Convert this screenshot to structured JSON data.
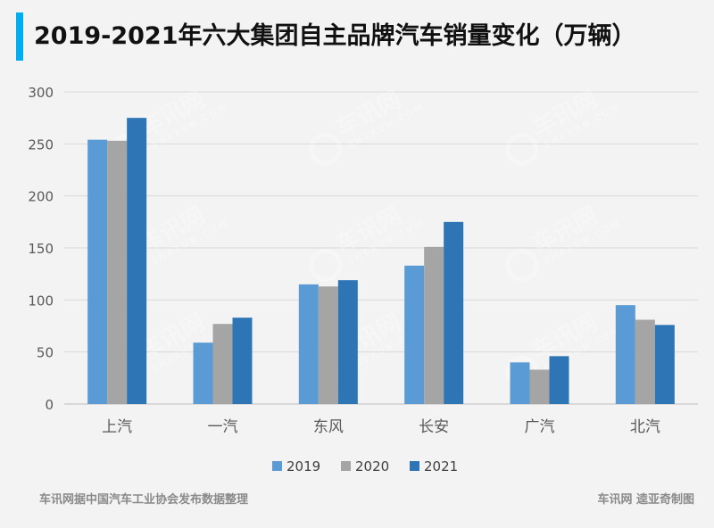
{
  "title": "2019-2021年六大集团自主品牌汽车销量变化（万辆）",
  "source_note": "车讯网据中国汽车工业协会发布数据整理",
  "credit": "车讯网 逵亚奇制图",
  "watermark": {
    "text": "车讯网",
    "subtext": "SHEXUN.COM"
  },
  "colors": {
    "2019": "#5b9bd5",
    "2020": "#a5a5a5",
    "2021": "#2e75b6",
    "accent": "#00aeef"
  },
  "chart_data": {
    "type": "bar",
    "categories": [
      "上汽",
      "一汽",
      "东风",
      "长安",
      "广汽",
      "北汽"
    ],
    "series": [
      {
        "name": "2019",
        "values": [
          254,
          59,
          115,
          133,
          40,
          95
        ]
      },
      {
        "name": "2020",
        "values": [
          253,
          77,
          113,
          151,
          33,
          81
        ]
      },
      {
        "name": "2021",
        "values": [
          275,
          83,
          119,
          175,
          46,
          76
        ]
      }
    ],
    "yticks": [
      0,
      50,
      100,
      150,
      200,
      250,
      300
    ],
    "ylim": [
      0,
      300
    ],
    "legend": "bottom",
    "grid": true
  }
}
